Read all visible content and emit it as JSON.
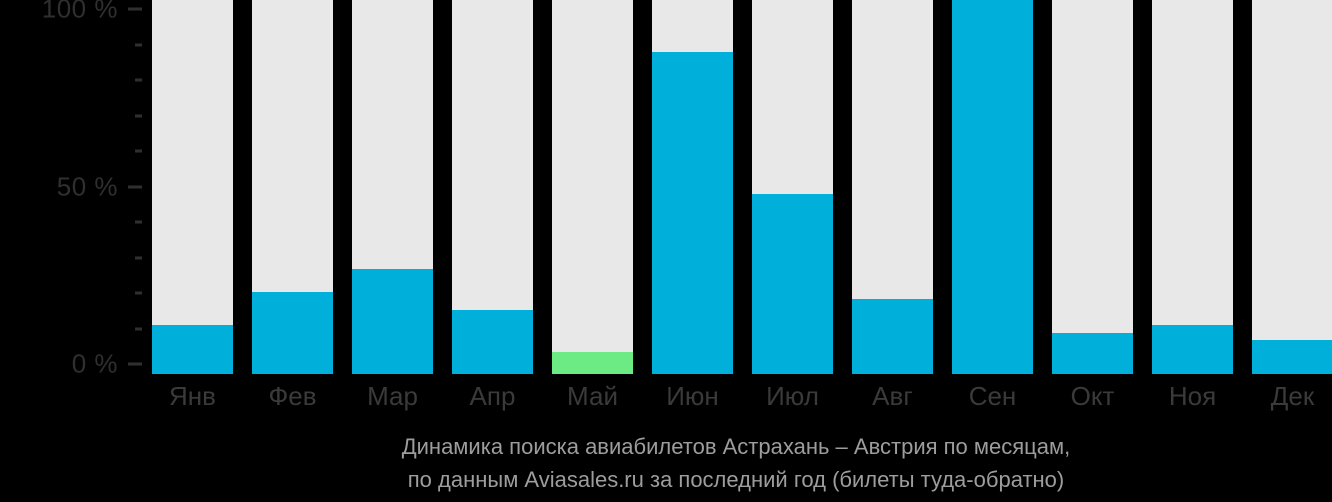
{
  "chart_data": {
    "type": "bar",
    "categories": [
      "Янв",
      "Фев",
      "Мар",
      "Апр",
      "Май",
      "Июн",
      "Июл",
      "Авг",
      "Сен",
      "Окт",
      "Ноя",
      "Дек"
    ],
    "values": [
      13,
      22,
      28,
      17,
      6,
      86,
      48,
      20,
      100,
      11,
      13,
      9
    ],
    "unit": "%",
    "highlight_index": 4,
    "title": "Динамика поиска авиабилетов Астрахань – Австрия по месяцам, по данным Aviasales.ru за последний год (билеты туда-обратно)",
    "caption_line1": "Динамика поиска авиабилетов Астрахань – Австрия по месяцам,",
    "caption_line2": "по данным Aviasales.ru за последний год (билеты туда-обратно)",
    "xlabel": "",
    "ylabel": "",
    "ylim": [
      0,
      100
    ],
    "ytick_step": 10,
    "ytick_labels": [
      {
        "value": 0,
        "label": "0 %"
      },
      {
        "value": 50,
        "label": "50 %"
      },
      {
        "value": 100,
        "label": "100 %"
      }
    ],
    "legend": "none",
    "grid": "off",
    "colors": {
      "background": "#000000",
      "bar": "#00afda",
      "bar_highlight": "#6ceb85",
      "track": "#e8e8e8",
      "axis_text": "#2f2f2f",
      "tick": "#2f2f2f",
      "month_text": "#3a3a3a",
      "caption_text": "#9d9d9d"
    }
  }
}
